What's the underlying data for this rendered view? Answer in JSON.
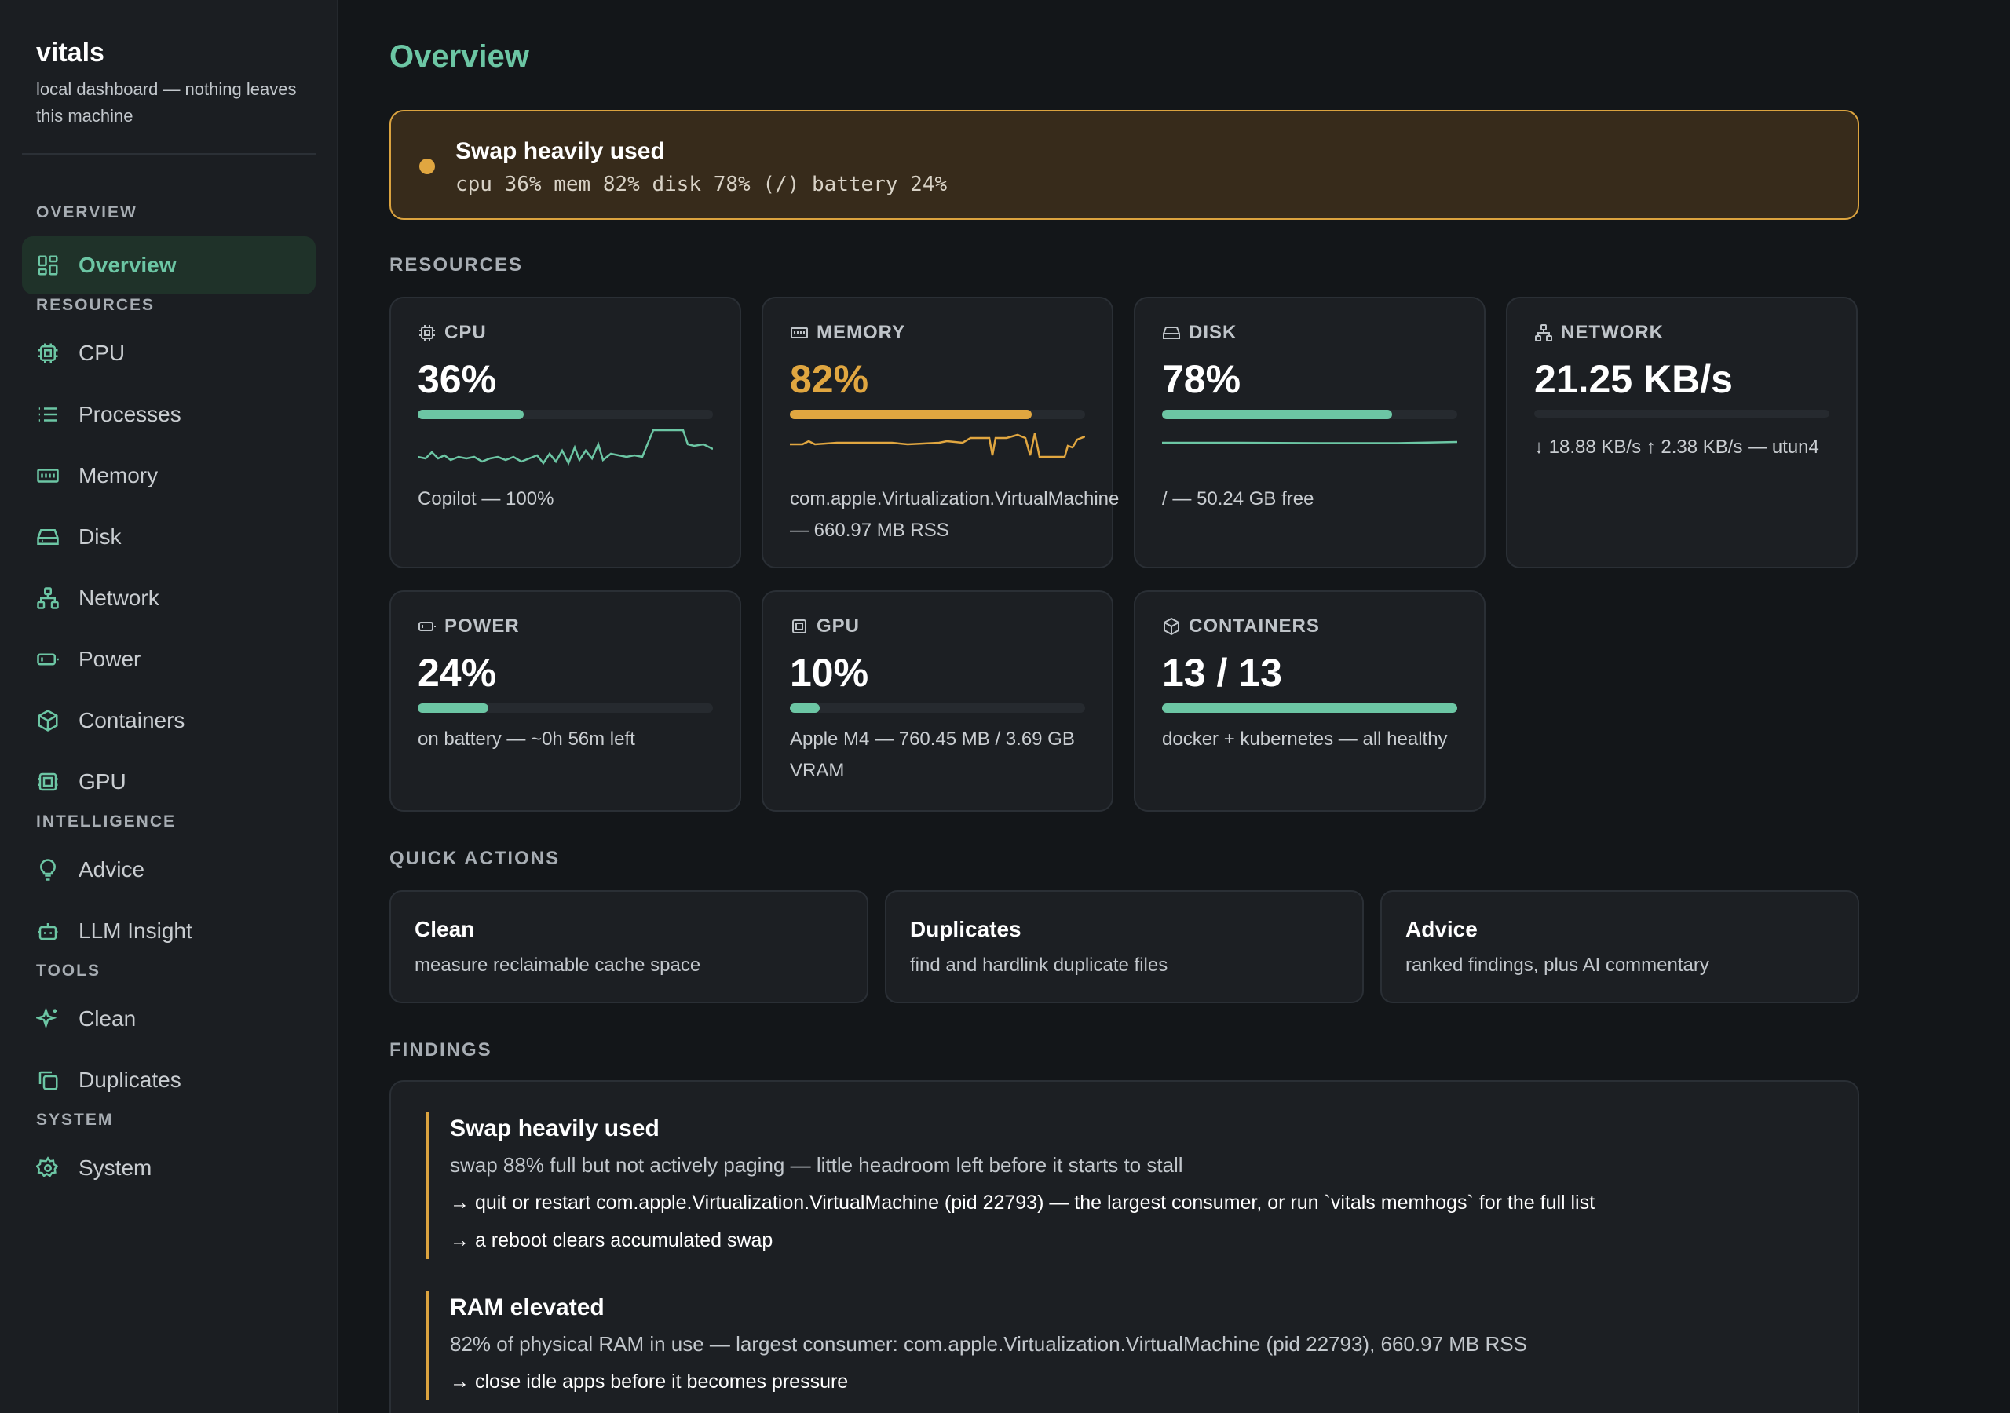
{
  "sidebar": {
    "brand": "vitals",
    "tagline": "local dashboard — nothing leaves this machine",
    "sections": {
      "overview": "OVERVIEW",
      "resources": "RESOURCES",
      "intelligence": "INTELLIGENCE",
      "tools": "TOOLS",
      "system": "SYSTEM"
    },
    "items": {
      "overview": {
        "label": "Overview",
        "icon": "grid-icon"
      },
      "cpu": {
        "label": "CPU",
        "icon": "cpu-icon"
      },
      "processes": {
        "label": "Processes",
        "icon": "list-icon"
      },
      "memory": {
        "label": "Memory",
        "icon": "memory-icon"
      },
      "disk": {
        "label": "Disk",
        "icon": "disk-icon"
      },
      "network": {
        "label": "Network",
        "icon": "network-icon"
      },
      "power": {
        "label": "Power",
        "icon": "battery-icon"
      },
      "containers": {
        "label": "Containers",
        "icon": "box-icon"
      },
      "gpu": {
        "label": "GPU",
        "icon": "gpu-icon"
      },
      "advice": {
        "label": "Advice",
        "icon": "lightbulb-icon"
      },
      "llm": {
        "label": "LLM Insight",
        "icon": "robot-icon"
      },
      "clean": {
        "label": "Clean",
        "icon": "sparkle-icon"
      },
      "duplicates": {
        "label": "Duplicates",
        "icon": "copy-icon"
      },
      "system": {
        "label": "System",
        "icon": "gear-icon"
      }
    }
  },
  "page": {
    "title": "Overview"
  },
  "alert": {
    "title": "Swap heavily used",
    "summary": "cpu 36% mem 82% disk 78% (/) battery 24%",
    "color": "#e0a640"
  },
  "resources": {
    "label": "RESOURCES",
    "cpu": {
      "title": "CPU",
      "value": "36%",
      "fraction": 0.36,
      "note": "Copilot — 100%"
    },
    "memory": {
      "title": "MEMORY",
      "value": "82%",
      "fraction": 0.82,
      "note": "com.apple.Virtualization.VirtualMachine — 660.97 MB RSS"
    },
    "disk": {
      "title": "DISK",
      "value": "78%",
      "fraction": 0.78,
      "note": "/ — 50.24 GB free"
    },
    "network": {
      "title": "NETWORK",
      "value": "21.25 KB/s",
      "fraction": 0,
      "note": "↓ 18.88 KB/s ↑ 2.38 KB/s — utun4"
    },
    "power": {
      "title": "POWER",
      "value": "24%",
      "fraction": 0.24,
      "note": "on battery — ~0h 56m left"
    },
    "gpu": {
      "title": "GPU",
      "value": "10%",
      "fraction": 0.1,
      "note": "Apple M4 — 760.45 MB / 3.69 GB VRAM"
    },
    "containers": {
      "title": "CONTAINERS",
      "value": "13 / 13",
      "fraction": 1.0,
      "note": "docker + kubernetes — all healthy"
    }
  },
  "quick_actions": {
    "label": "QUICK ACTIONS",
    "items": [
      {
        "title": "Clean",
        "desc": "measure reclaimable cache space"
      },
      {
        "title": "Duplicates",
        "desc": "find and hardlink duplicate files"
      },
      {
        "title": "Advice",
        "desc": "ranked findings, plus AI commentary"
      }
    ]
  },
  "findings": {
    "label": "FINDINGS",
    "items": [
      {
        "title": "Swap heavily used",
        "desc": "swap 88% full but not actively paging — little headroom left before it starts to stall",
        "actions": [
          "→ quit or restart com.apple.Virtualization.VirtualMachine (pid 22793) — the largest consumer, or run `vitals memhogs` for the full list",
          "→ a reboot clears accumulated swap"
        ]
      },
      {
        "title": "RAM elevated",
        "desc": "82% of physical RAM in use — largest consumer: com.apple.Virtualization.VirtualMachine (pid 22793), 660.97 MB RSS",
        "actions": [
          "→ close idle apps before it becomes pressure"
        ]
      }
    ]
  },
  "colors": {
    "accent": "#6cc6a4",
    "warning": "#e0a640",
    "background": "#131619",
    "card": "#1c1f23"
  }
}
